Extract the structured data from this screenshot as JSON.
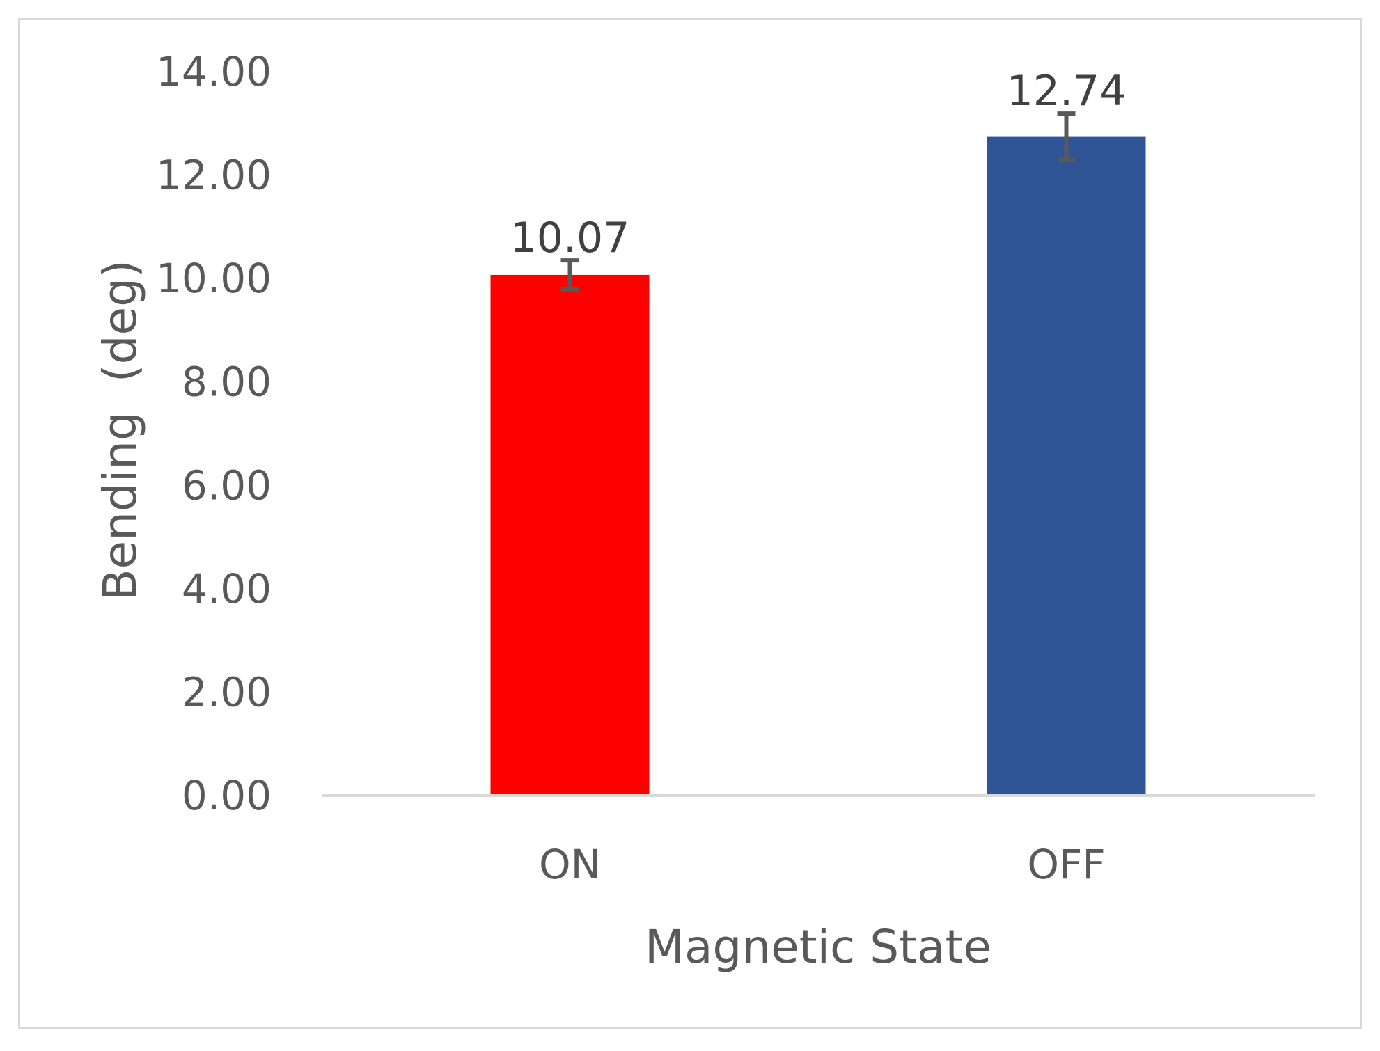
{
  "chart_data": {
    "type": "bar",
    "title": "",
    "xlabel": "Magnetic State",
    "ylabel": "Bending  (deg)",
    "categories": [
      "ON",
      "OFF"
    ],
    "values": [
      10.07,
      12.74
    ],
    "value_labels": [
      "10.07",
      "12.74"
    ],
    "error": [
      0.28,
      0.45
    ],
    "bar_colors": [
      "#ff0000",
      "#2f5597"
    ],
    "ylim": [
      0,
      14
    ],
    "yticks": [
      "0.00",
      "2.00",
      "4.00",
      "6.00",
      "8.00",
      "10.00",
      "12.00",
      "14.00"
    ],
    "grid": false,
    "legend": "none"
  },
  "colors": {
    "text": "#595959",
    "data_label": "#404040",
    "axis_line": "#d9d9d9",
    "error_bar": "#595959",
    "frame": "#d9d9d9"
  }
}
